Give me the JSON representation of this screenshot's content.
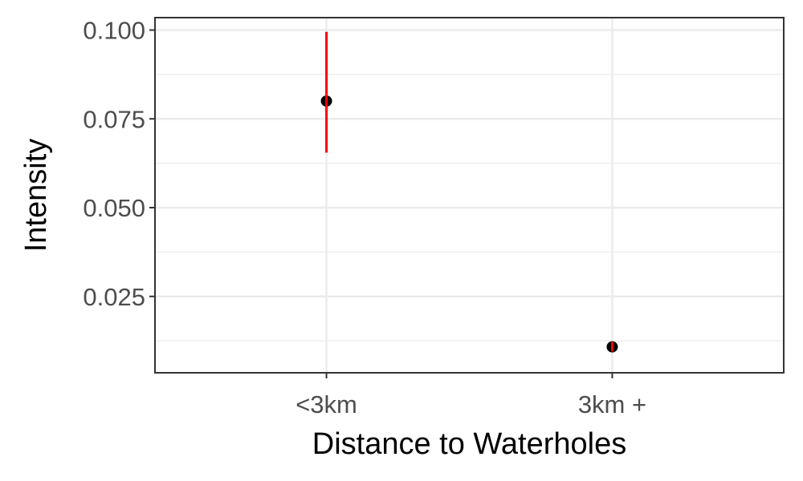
{
  "chart_data": {
    "type": "scatter",
    "title": "",
    "xlabel": "Distance to Waterholes",
    "ylabel": "Intensity",
    "categories": [
      "<3km",
      "3km +"
    ],
    "ylim": [
      0.0035,
      0.1035
    ],
    "yticks": [
      0.025,
      0.05,
      0.075,
      0.1
    ],
    "ytick_labels": [
      "0.025",
      "0.050",
      "0.075",
      "0.100"
    ],
    "points": [
      {
        "category": "<3km",
        "value": 0.08,
        "lower": 0.0655,
        "upper": 0.0995
      },
      {
        "category": "3km +",
        "value": 0.0108,
        "lower": 0.0095,
        "upper": 0.0122
      }
    ],
    "grid": true,
    "legend": "none",
    "colors": {
      "point": "#000000",
      "errorbar": "#ff0000",
      "grid": "#ebebeb",
      "panel_border": "#333333",
      "tick_label": "#4d4d4d"
    }
  }
}
